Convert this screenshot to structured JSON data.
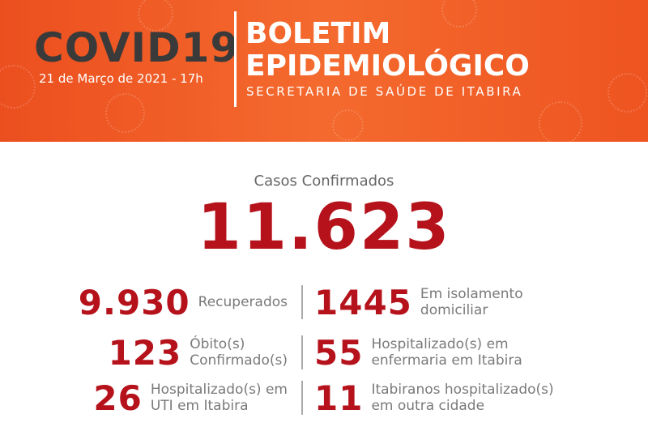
{
  "header": {
    "title": "COVID19",
    "date": "21 de Março de 2021 - 17h",
    "bulletin": [
      "BOLETIM",
      "EPIDEMIOLÓGICO"
    ],
    "subtitle": "SECRETARIA DE SAÚDE DE ITABIRA"
  },
  "main": {
    "label": "Casos Confirmados",
    "value": "11.623"
  },
  "stats": {
    "left": [
      {
        "value": "9.930",
        "label": [
          "Recuperados"
        ]
      },
      {
        "value": "123",
        "label": [
          "Óbito(s)",
          "Confirmado(s)"
        ]
      },
      {
        "value": "26",
        "label": [
          "Hospitalizado(s) em",
          "UTI em Itabira"
        ]
      }
    ],
    "right": [
      {
        "value": "1445",
        "label": [
          "Em isolamento",
          "domiciliar"
        ]
      },
      {
        "value": "55",
        "label": [
          "Hospitalizado(s) em",
          "enfermaria em Itabira"
        ]
      },
      {
        "value": "11",
        "label": [
          "Itabiranos hospitalizado(s)",
          "em outra cidade"
        ]
      }
    ]
  }
}
